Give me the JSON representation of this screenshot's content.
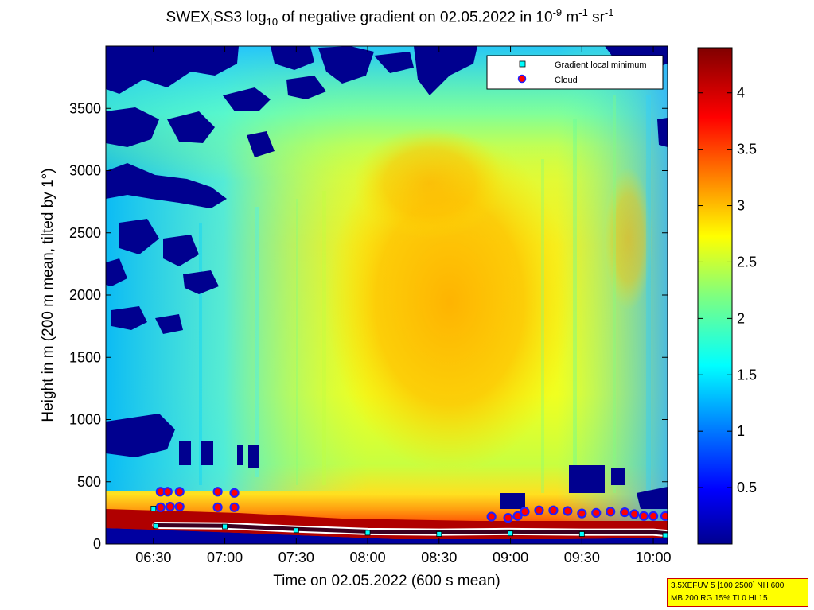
{
  "title": {
    "part1": "SWEX",
    "sub1": "I",
    "part2": "SS3 log",
    "sub2": "10",
    "part3": " of negative gradient on 02.05.2022 in 10",
    "sup1": "-9",
    "part4": " m",
    "sup2": "-1",
    "part5": " sr",
    "sup3": "-1"
  },
  "info_box": {
    "line1": "3.5XEFUV 5 [100 2500] NH 600",
    "line2": "MB 200 RG 15% TI 0 HI 15"
  },
  "chart_data": {
    "type": "heatmap",
    "xlabel": "Time on 02.05.2022 (600 s mean)",
    "ylabel": "Height in m (200 m mean, tilted by 1°)",
    "x_range": [
      "06:10",
      "10:06"
    ],
    "x_ticks": [
      "06:30",
      "07:00",
      "07:30",
      "08:00",
      "08:30",
      "09:00",
      "09:30",
      "10:00"
    ],
    "ylim": [
      0,
      4000
    ],
    "y_ticks": [
      0,
      500,
      1000,
      1500,
      2000,
      2500,
      3000,
      3500
    ],
    "colorbar": {
      "range": [
        0,
        4.4
      ],
      "ticks": [
        0.5,
        1,
        1.5,
        2,
        2.5,
        3,
        3.5,
        4
      ],
      "colormap": "jet"
    },
    "legend": {
      "placement": "top-right",
      "entries": [
        {
          "label": "Gradient local minimum",
          "marker": "square",
          "color": "#00ffff"
        },
        {
          "label": "Cloud",
          "marker": "circle",
          "color": "#ff0000"
        }
      ]
    },
    "cloud_points": [
      {
        "time": "06:33",
        "height": 420
      },
      {
        "time": "06:36",
        "height": 420
      },
      {
        "time": "06:41",
        "height": 420
      },
      {
        "time": "06:33",
        "height": 295
      },
      {
        "time": "06:37",
        "height": 300
      },
      {
        "time": "06:41",
        "height": 300
      },
      {
        "time": "06:57",
        "height": 420
      },
      {
        "time": "07:04",
        "height": 410
      },
      {
        "time": "06:57",
        "height": 295
      },
      {
        "time": "07:04",
        "height": 295
      },
      {
        "time": "08:52",
        "height": 220
      },
      {
        "time": "08:59",
        "height": 210
      },
      {
        "time": "09:03",
        "height": 225
      },
      {
        "time": "09:06",
        "height": 260
      },
      {
        "time": "09:12",
        "height": 270
      },
      {
        "time": "09:18",
        "height": 270
      },
      {
        "time": "09:24",
        "height": 265
      },
      {
        "time": "09:30",
        "height": 245
      },
      {
        "time": "09:36",
        "height": 250
      },
      {
        "time": "09:42",
        "height": 260
      },
      {
        "time": "09:48",
        "height": 255
      },
      {
        "time": "09:52",
        "height": 240
      },
      {
        "time": "09:56",
        "height": 225
      },
      {
        "time": "10:00",
        "height": 225
      },
      {
        "time": "10:05",
        "height": 225
      }
    ],
    "gradient_minimum_points": [
      {
        "time": "06:30",
        "height": 285
      },
      {
        "time": "06:31",
        "height": 145
      },
      {
        "time": "07:00",
        "height": 140
      },
      {
        "time": "07:30",
        "height": 110
      },
      {
        "time": "08:00",
        "height": 90
      },
      {
        "time": "08:30",
        "height": 80
      },
      {
        "time": "09:00",
        "height": 85
      },
      {
        "time": "09:30",
        "height": 80
      },
      {
        "time": "10:05",
        "height": 70
      }
    ],
    "low_cloud_line": [
      {
        "time": "06:31",
        "height": 150
      },
      {
        "time": "07:00",
        "height": 145
      },
      {
        "time": "07:30",
        "height": 120
      },
      {
        "time": "07:45",
        "height": 110
      },
      {
        "time": "08:00",
        "height": 100
      },
      {
        "time": "08:30",
        "height": 95
      },
      {
        "time": "09:00",
        "height": 100
      },
      {
        "time": "09:30",
        "height": 95
      },
      {
        "time": "10:00",
        "height": 95
      },
      {
        "time": "10:06",
        "height": 85
      }
    ]
  }
}
